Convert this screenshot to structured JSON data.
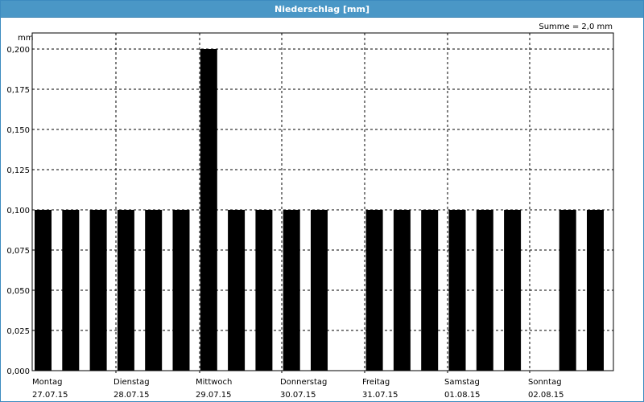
{
  "window": {
    "title": "Niederschlag [mm]"
  },
  "summary": "Summe = 2,0 mm",
  "chart_data": {
    "type": "bar",
    "unit": "mm",
    "ylim": [
      0,
      0.2
    ],
    "yticks": [
      "0,000",
      "0,025",
      "0,050",
      "0,075",
      "0,100",
      "0,125",
      "0,150",
      "0,175",
      "0,200"
    ],
    "grid": true,
    "days": [
      {
        "name": "Montag",
        "date": "27.07.15"
      },
      {
        "name": "Dienstag",
        "date": "28.07.15"
      },
      {
        "name": "Mittwoch",
        "date": "29.07.15"
      },
      {
        "name": "Donnerstag",
        "date": "30.07.15"
      },
      {
        "name": "Freitag",
        "date": "31.07.15"
      },
      {
        "name": "Samstag",
        "date": "01.08.15"
      },
      {
        "name": "Sonntag",
        "date": "02.08.15"
      }
    ],
    "values": [
      0.1,
      0.1,
      0.1,
      0.1,
      0.1,
      0.1,
      0.2,
      0.1,
      0.1,
      0.1,
      0.1,
      0,
      0.1,
      0.1,
      0.1,
      0.1,
      0.1,
      0.1,
      0,
      0.1,
      0.1
    ],
    "bar_color": "#000000"
  }
}
